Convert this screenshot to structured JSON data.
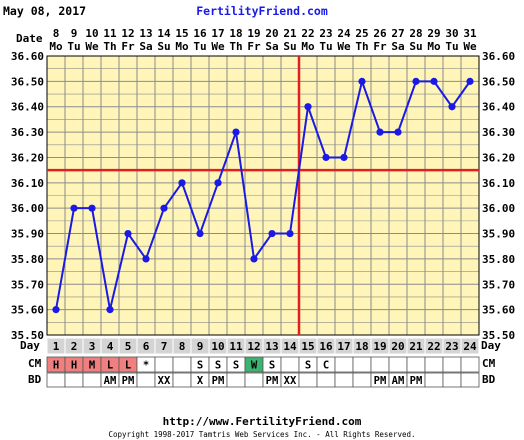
{
  "header": {
    "date": "May 08, 2017",
    "site": "FertilityFriend.com"
  },
  "footer": {
    "url": "http://www.FertilityFriend.com",
    "copyright": "Copyright 1998-2017 Tamtris Web Services Inc. - All Rights Reserved."
  },
  "row_labels": {
    "date": "Date",
    "day": "Day",
    "cm": "CM",
    "bd": "BD"
  },
  "colors": {
    "background": "#FFFFFF",
    "plot_bg": "#FFF5B8",
    "grid": "#8C8C8C",
    "temp_line": "#1A1AE6",
    "coverline": "#E02020",
    "ovulation_line": "#E02020",
    "day_row_bg": "#D4D4D4",
    "cm_h": "#F08080",
    "cm_m": "#F08080",
    "cm_l": "#F08080",
    "cm_w": "#3CB371"
  },
  "chart_data": {
    "type": "line",
    "dates": [
      "8",
      "9",
      "10",
      "11",
      "12",
      "13",
      "14",
      "15",
      "16",
      "17",
      "18",
      "19",
      "20",
      "21",
      "22",
      "23",
      "24",
      "25",
      "26",
      "27",
      "28",
      "29",
      "30",
      "31"
    ],
    "weekdays": [
      "Mo",
      "Tu",
      "We",
      "Th",
      "Fr",
      "Sa",
      "Su",
      "Mo",
      "Tu",
      "We",
      "Th",
      "Fr",
      "Sa",
      "Su",
      "Mo",
      "Tu",
      "We",
      "Th",
      "Fr",
      "Sa",
      "Su",
      "Mo",
      "Tu",
      "We"
    ],
    "cycle_days": [
      "1",
      "2",
      "3",
      "4",
      "5",
      "6",
      "7",
      "8",
      "9",
      "10",
      "11",
      "12",
      "13",
      "14",
      "15",
      "16",
      "17",
      "18",
      "19",
      "20",
      "21",
      "22",
      "23",
      "24"
    ],
    "temperatures": [
      35.6,
      36.0,
      36.0,
      35.6,
      35.9,
      35.8,
      36.0,
      36.1,
      35.9,
      36.1,
      36.3,
      35.8,
      35.9,
      35.9,
      36.4,
      36.2,
      36.2,
      36.5,
      36.3,
      36.3,
      36.5,
      36.5,
      36.4,
      36.5
    ],
    "ylim": [
      35.5,
      36.6
    ],
    "yticks": [
      "35.50",
      "35.60",
      "35.70",
      "35.80",
      "35.90",
      "36.00",
      "36.10",
      "36.20",
      "36.30",
      "36.40",
      "36.50",
      "36.60"
    ],
    "coverline": 36.15,
    "ovulation_after_day": 14,
    "cm": [
      "H",
      "H",
      "M",
      "L",
      "L",
      "*",
      "",
      "",
      "S",
      "S",
      "S",
      "W",
      "S",
      "",
      "S",
      "C",
      "",
      "",
      "",
      "",
      "",
      "",
      "",
      ""
    ],
    "bd": [
      "",
      "",
      "",
      "AM",
      "PM",
      "",
      "XX",
      "",
      "X",
      "PM",
      "",
      "",
      "PM",
      "XX",
      "",
      "",
      "",
      "",
      "PM",
      "AM",
      "PM",
      "",
      "",
      ""
    ],
    "grid": true
  }
}
